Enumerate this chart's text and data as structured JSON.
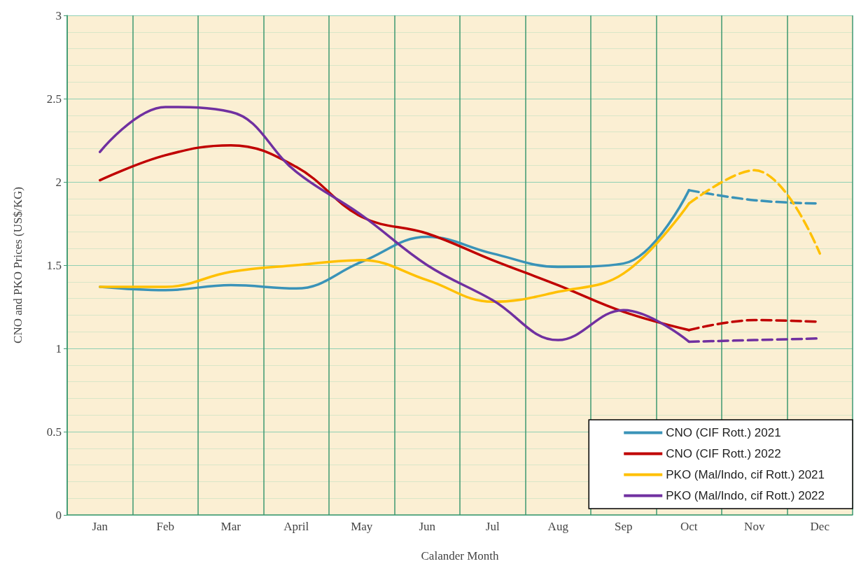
{
  "chart_data": {
    "type": "line",
    "xlabel": "Calander Month",
    "ylabel": "CNO and PKO Prices (US$/KG)",
    "categories": [
      "Jan",
      "Feb",
      "Mar",
      "April",
      "May",
      "Jun",
      "Jul",
      "Aug",
      "Sep",
      "Oct",
      "Nov",
      "Dec"
    ],
    "series": [
      {
        "name": "CNO (CIF Rott.) 2021",
        "color": "#3a93b8",
        "line_style": "solid",
        "values": [
          1.37,
          1.35,
          1.38,
          1.36,
          1.52,
          1.67,
          1.57,
          1.49,
          1.51,
          1.95,
          null,
          null
        ]
      },
      {
        "name": "CNO (CIF Rott.) 2022",
        "color": "#c00000",
        "line_style": "solid",
        "values": [
          2.01,
          2.16,
          2.22,
          2.09,
          1.79,
          1.69,
          1.53,
          1.38,
          1.22,
          1.11,
          null,
          null
        ]
      },
      {
        "name": "PKO (Mal/Indo, cif Rott.) 2021",
        "color": "#ffc000",
        "line_style": "solid",
        "values": [
          1.37,
          1.37,
          1.46,
          1.5,
          1.53,
          1.41,
          1.28,
          1.34,
          1.45,
          1.87,
          null,
          null
        ]
      },
      {
        "name": "PKO (Mal/Indo, cif Rott.) 2022",
        "color": "#7030a0",
        "line_style": "solid",
        "values": [
          2.18,
          2.45,
          2.42,
          2.06,
          1.8,
          1.5,
          1.29,
          1.05,
          1.23,
          1.04,
          null,
          null
        ]
      },
      {
        "color": "#3a93b8",
        "line_style": "dashed",
        "values": [
          null,
          null,
          null,
          null,
          null,
          null,
          null,
          null,
          null,
          1.95,
          1.89,
          1.87
        ]
      },
      {
        "color": "#c00000",
        "line_style": "dashed",
        "values": [
          null,
          null,
          null,
          null,
          null,
          null,
          null,
          null,
          null,
          1.11,
          1.17,
          1.16
        ]
      },
      {
        "color": "#ffc000",
        "line_style": "dashed",
        "values": [
          null,
          null,
          null,
          null,
          null,
          null,
          null,
          null,
          null,
          1.87,
          2.07,
          1.57
        ]
      },
      {
        "color": "#7030a0",
        "line_style": "dashed",
        "values": [
          null,
          null,
          null,
          null,
          null,
          null,
          null,
          null,
          null,
          1.04,
          1.05,
          1.06
        ]
      }
    ],
    "ylim": [
      0,
      3
    ],
    "yticks": [
      0,
      0.5,
      1,
      1.5,
      2,
      2.5,
      3
    ],
    "grid": true,
    "legend": "bottom right",
    "marker": "none"
  }
}
